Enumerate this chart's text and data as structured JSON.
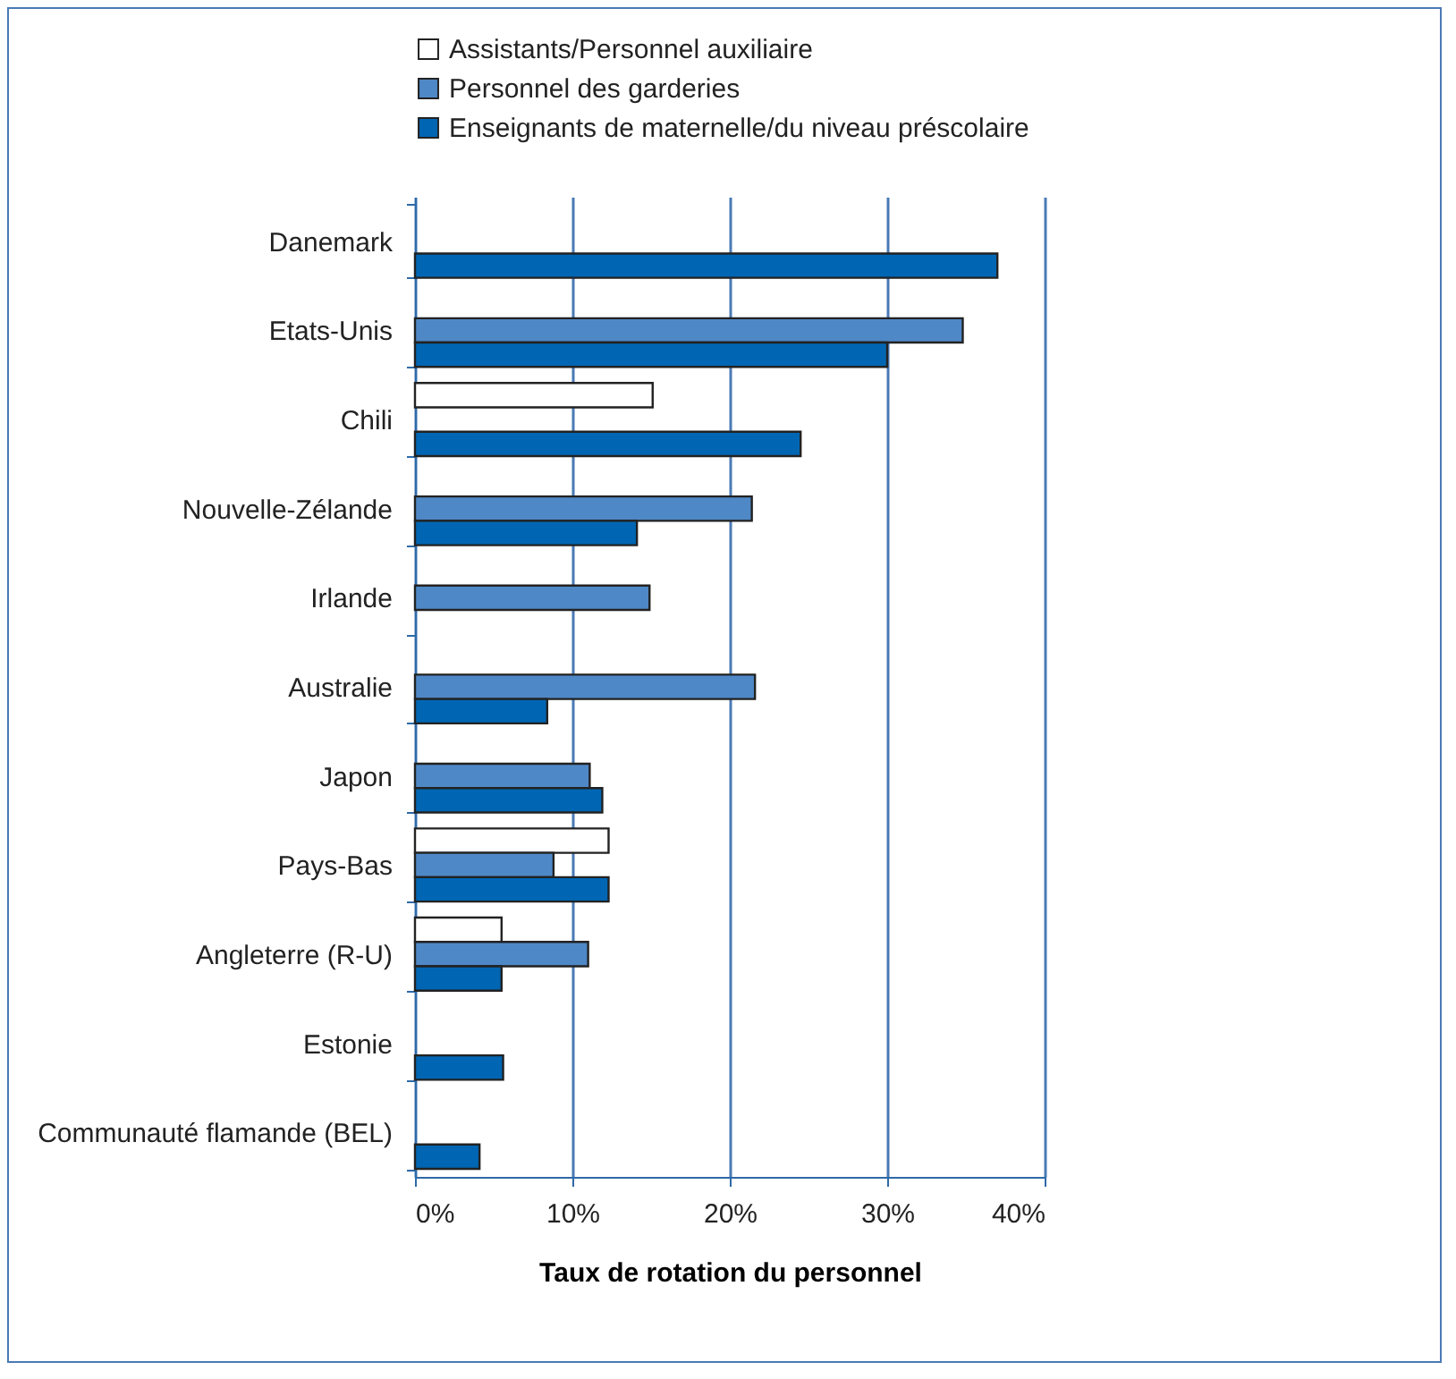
{
  "chart_data": {
    "type": "bar",
    "orientation": "horizontal",
    "xlabel": "Taux de rotation du personnel",
    "categories": [
      "Danemark",
      "Etats-Unis",
      "Chili",
      "Nouvelle-Zélande",
      "Irlande",
      "Australie",
      "Japon",
      "Pays-Bas",
      "Angleterre (R-U)",
      "Estonie",
      "Communauté flamande (BEL)"
    ],
    "series": [
      {
        "name": "Assistants/Personnel auxiliaire",
        "color": "#ffffff",
        "values": [
          null,
          null,
          15.1,
          null,
          null,
          null,
          null,
          12.3,
          5.5,
          null,
          null
        ]
      },
      {
        "name": "Personnel des garderies",
        "color": "#4f88c6",
        "values": [
          null,
          34.8,
          null,
          21.4,
          14.9,
          21.6,
          11.1,
          8.8,
          11.0,
          null,
          null
        ]
      },
      {
        "name": "Enseignants de maternelle/du niveau préscolaire",
        "color": "#0066b3",
        "values": [
          37.0,
          30.0,
          24.5,
          14.1,
          null,
          8.4,
          11.9,
          12.3,
          5.5,
          5.6,
          4.1
        ]
      }
    ],
    "xlim": [
      0,
      40
    ],
    "xticks": [
      {
        "value": 0,
        "label": "0%"
      },
      {
        "value": 10,
        "label": "10%"
      },
      {
        "value": 20,
        "label": "20%"
      },
      {
        "value": 30,
        "label": "30%"
      },
      {
        "value": 40,
        "label": "40%"
      }
    ],
    "grid": "x",
    "legend": "top"
  }
}
